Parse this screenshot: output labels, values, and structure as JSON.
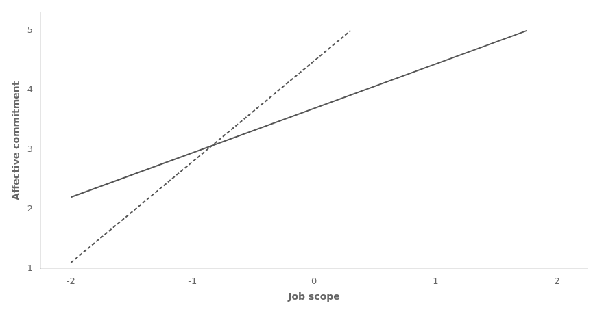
{
  "chart_data": {
    "type": "line",
    "xlabel": "Job scope",
    "ylabel": "Affective commitment",
    "xlim": [
      -2.25,
      2.25
    ],
    "ylim": [
      1,
      5.3
    ],
    "xticks": [
      -2,
      -1,
      0,
      1,
      2
    ],
    "yticks": [
      1,
      2,
      3,
      4,
      5
    ],
    "grid": false,
    "series": [
      {
        "x": [
          -2.0,
          1.75
        ],
        "values": [
          2.2,
          5.0
        ],
        "color": "#555555",
        "line_style": "solid"
      },
      {
        "x": [
          -2.0,
          0.3
        ],
        "values": [
          1.1,
          5.0
        ],
        "color": "#555555",
        "line_style": "dashed"
      }
    ]
  }
}
